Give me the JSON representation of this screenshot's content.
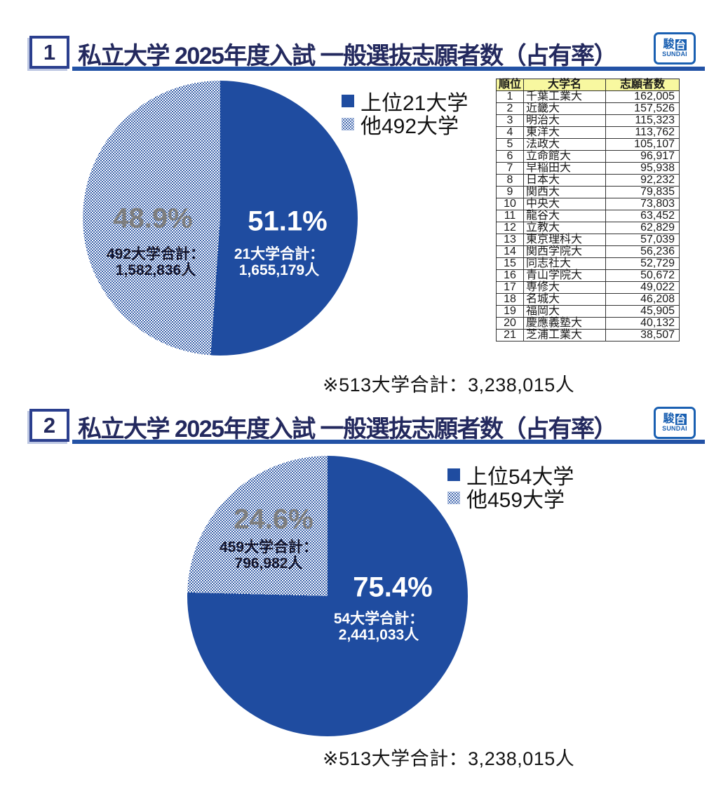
{
  "colors": {
    "pie_blue": "#1F4CA0",
    "title_navy": "#23295E",
    "underline_blue": "#2352A5",
    "pct_gray": "#7E7E7E",
    "table_header_bg": "#F8F8A0",
    "logo_blue": "#1A60B2"
  },
  "logo": {
    "kanji1": "駿",
    "kanji2": "台",
    "latin": "SUNDAI"
  },
  "sections": [
    {
      "number": "1",
      "title": "私立大学 2025年度入試 一般選抜志願者数（占有率）",
      "legend": {
        "top": "上位21大学",
        "other": "他492大学"
      },
      "pie": {
        "top_pct": "51.1%",
        "top_line1": "21大学合計：",
        "top_line2": "1,655,179人",
        "other_pct": "48.9%",
        "other_line1": "492大学合計：",
        "other_line2": "1,582,836人"
      },
      "footnote": "※513大学合計：3,238,015人"
    },
    {
      "number": "2",
      "title": "私立大学 2025年度入試 一般選抜志願者数（占有率）",
      "legend": {
        "top": "上位54大学",
        "other": "他459大学"
      },
      "pie": {
        "top_pct": "75.4%",
        "top_line1": "54大学合計：",
        "top_line2": "2,441,033人",
        "other_pct": "24.6%",
        "other_line1": "459大学合計：",
        "other_line2": "796,982人"
      },
      "footnote": "※513大学合計：3,238,015人"
    }
  ],
  "ranking_table": {
    "columns": [
      "順位",
      "大学名",
      "志願者数"
    ],
    "rows": [
      [
        "1",
        "千葉工業大",
        "162,005"
      ],
      [
        "2",
        "近畿大",
        "157,526"
      ],
      [
        "3",
        "明治大",
        "115,323"
      ],
      [
        "4",
        "東洋大",
        "113,762"
      ],
      [
        "5",
        "法政大",
        "105,107"
      ],
      [
        "6",
        "立命館大",
        "96,917"
      ],
      [
        "7",
        "早稲田大",
        "95,938"
      ],
      [
        "8",
        "日本大",
        "92,232"
      ],
      [
        "9",
        "関西大",
        "79,835"
      ],
      [
        "10",
        "中央大",
        "73,803"
      ],
      [
        "11",
        "龍谷大",
        "63,452"
      ],
      [
        "12",
        "立教大",
        "62,829"
      ],
      [
        "13",
        "東京理科大",
        "57,039"
      ],
      [
        "14",
        "関西学院大",
        "56,236"
      ],
      [
        "15",
        "同志社大",
        "52,729"
      ],
      [
        "16",
        "青山学院大",
        "50,672"
      ],
      [
        "17",
        "専修大",
        "49,022"
      ],
      [
        "18",
        "名城大",
        "46,208"
      ],
      [
        "19",
        "福岡大",
        "45,905"
      ],
      [
        "20",
        "慶應義塾大",
        "40,132"
      ],
      [
        "21",
        "芝浦工業大",
        "38,507"
      ]
    ]
  },
  "chart_data": [
    {
      "type": "pie",
      "title": "私立大学 2025年度入試 一般選抜志願者数（占有率）",
      "labels": [
        "上位21大学",
        "他492大学"
      ],
      "values": [
        51.1,
        48.9
      ],
      "counts": [
        1655179,
        1582836
      ],
      "count_labels": [
        "21大学合計：1,655,179人",
        "492大学合計：1,582,836人"
      ],
      "note": "※513大学合計：3,238,015人",
      "legend_position": "right",
      "start_angle": "top",
      "direction": "clockwise"
    },
    {
      "type": "pie",
      "title": "私立大学 2025年度入試 一般選抜志願者数（占有率）",
      "labels": [
        "上位54大学",
        "他459大学"
      ],
      "values": [
        75.4,
        24.6
      ],
      "counts": [
        2441033,
        796982
      ],
      "count_labels": [
        "54大学合計：2,441,033人",
        "459大学合計：796,982人"
      ],
      "note": "※513大学合計：3,238,015人",
      "legend_position": "right",
      "start_angle": "top",
      "direction": "clockwise"
    },
    {
      "type": "table",
      "title": "私立大学 一般選抜志願者数ランキング（上位21大学）",
      "columns": [
        "順位",
        "大学名",
        "志願者数"
      ],
      "rows": [
        [
          1,
          "千葉工業大",
          162005
        ],
        [
          2,
          "近畿大",
          157526
        ],
        [
          3,
          "明治大",
          115323
        ],
        [
          4,
          "東洋大",
          113762
        ],
        [
          5,
          "法政大",
          105107
        ],
        [
          6,
          "立命館大",
          96917
        ],
        [
          7,
          "早稲田大",
          95938
        ],
        [
          8,
          "日本大",
          92232
        ],
        [
          9,
          "関西大",
          79835
        ],
        [
          10,
          "中央大",
          73803
        ],
        [
          11,
          "龍谷大",
          63452
        ],
        [
          12,
          "立教大",
          62829
        ],
        [
          13,
          "東京理科大",
          57039
        ],
        [
          14,
          "関西学院大",
          56236
        ],
        [
          15,
          "同志社大",
          52729
        ],
        [
          16,
          "青山学院大",
          50672
        ],
        [
          17,
          "専修大",
          49022
        ],
        [
          18,
          "名城大",
          46208
        ],
        [
          19,
          "福岡大",
          45905
        ],
        [
          20,
          "慶應義塾大",
          40132
        ],
        [
          21,
          "芝浦工業大",
          38507
        ]
      ]
    }
  ]
}
